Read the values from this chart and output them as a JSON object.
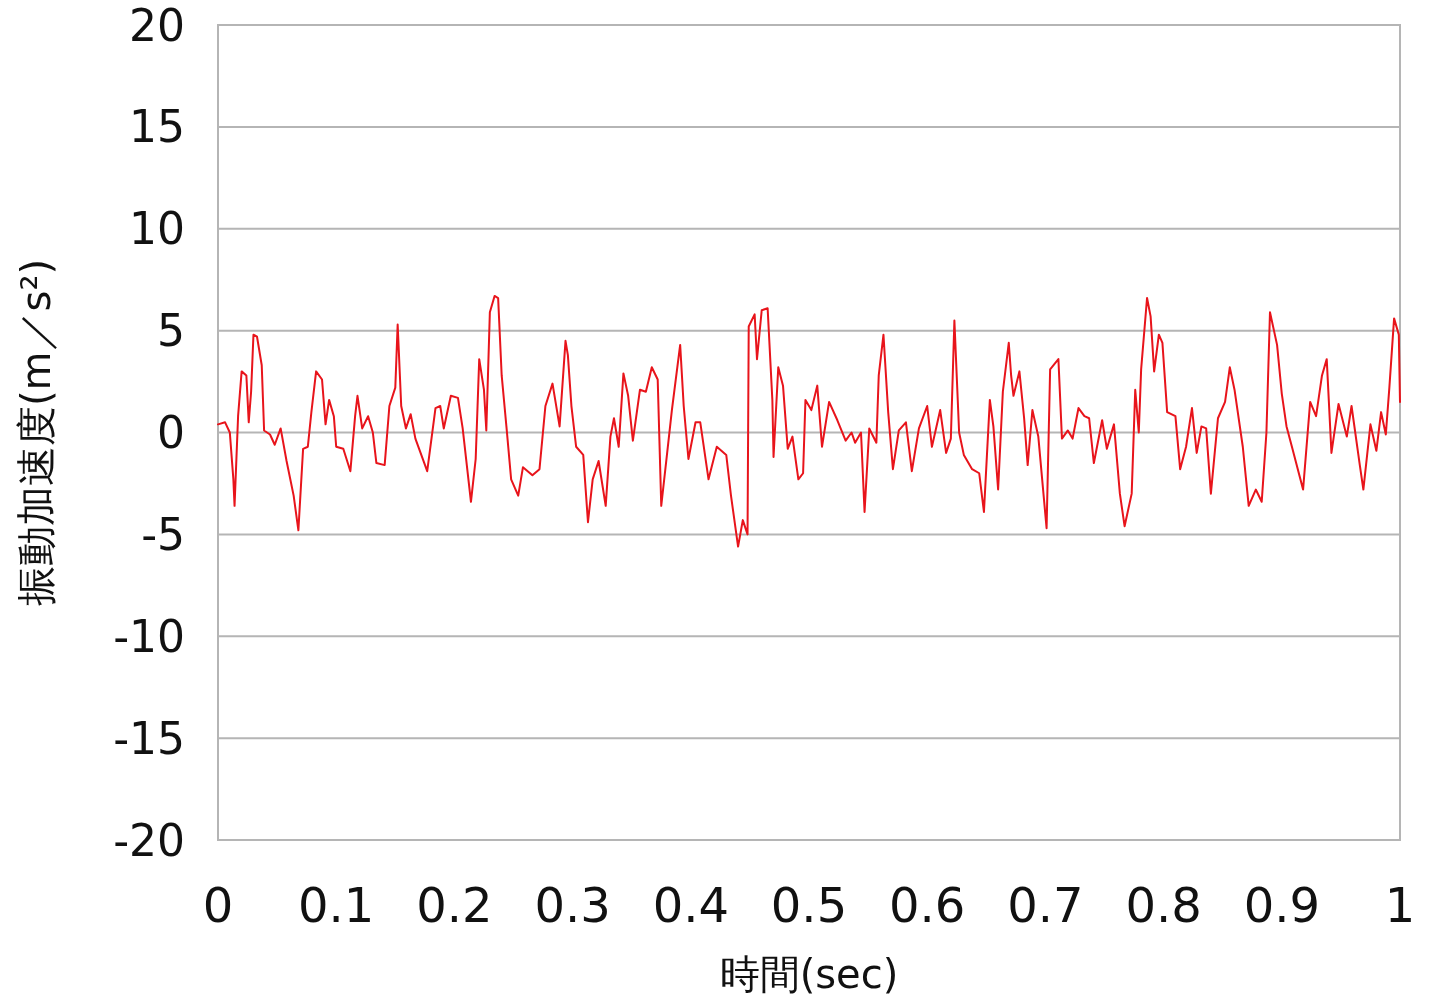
{
  "chart_data": {
    "type": "line",
    "xlabel": "時間(sec)",
    "ylabel": "振動加速度(m／s²)",
    "xlim": [
      0,
      1
    ],
    "xticks": [
      0,
      0.1,
      0.2,
      0.3,
      0.4,
      0.5,
      0.6,
      0.7,
      0.8,
      0.9,
      1
    ],
    "ylim": [
      -20,
      20
    ],
    "yticks": [
      -20,
      -15,
      -10,
      -5,
      0,
      5,
      10,
      15,
      20
    ],
    "grid": "y",
    "marker": "none",
    "line_style": "solid",
    "series": [
      {
        "color": "#e8141b",
        "x": [
          0,
          0.006,
          0.01,
          0.013,
          0.014,
          0.017,
          0.02,
          0.024,
          0.026,
          0.028,
          0.03,
          0.033,
          0.037,
          0.039,
          0.044,
          0.048,
          0.053,
          0.058,
          0.064,
          0.068,
          0.072,
          0.076,
          0.079,
          0.083,
          0.088,
          0.091,
          0.094,
          0.098,
          0.1,
          0.106,
          0.112,
          0.116,
          0.118,
          0.122,
          0.127,
          0.131,
          0.134,
          0.141,
          0.145,
          0.15,
          0.152,
          0.155,
          0.159,
          0.163,
          0.167,
          0.177,
          0.184,
          0.188,
          0.191,
          0.197,
          0.203,
          0.207,
          0.214,
          0.218,
          0.221,
          0.225,
          0.227,
          0.23,
          0.234,
          0.237,
          0.24,
          0.244,
          0.248,
          0.254,
          0.258,
          0.266,
          0.272,
          0.277,
          0.283,
          0.289,
          0.294,
          0.296,
          0.299,
          0.303,
          0.309,
          0.313,
          0.317,
          0.322,
          0.328,
          0.332,
          0.335,
          0.339,
          0.343,
          0.347,
          0.351,
          0.357,
          0.362,
          0.367,
          0.372,
          0.375,
          0.38,
          0.384,
          0.391,
          0.394,
          0.398,
          0.404,
          0.408,
          0.415,
          0.422,
          0.43,
          0.434,
          0.44,
          0.444,
          0.448,
          0.449,
          0.454,
          0.456,
          0.46,
          0.465,
          0.469,
          0.47,
          0.474,
          0.478,
          0.482,
          0.486,
          0.491,
          0.495,
          0.497,
          0.502,
          0.507,
          0.511,
          0.517,
          0.524,
          0.531,
          0.536,
          0.539,
          0.544,
          0.547,
          0.551,
          0.557,
          0.559,
          0.563,
          0.567,
          0.571,
          0.576,
          0.582,
          0.587,
          0.593,
          0.6,
          0.604,
          0.611,
          0.616,
          0.62,
          0.623,
          0.627,
          0.631,
          0.638,
          0.644,
          0.648,
          0.653,
          0.656,
          0.66,
          0.664,
          0.669,
          0.671,
          0.673,
          0.678,
          0.682,
          0.685,
          0.689,
          0.694,
          0.701,
          0.704,
          0.711,
          0.714,
          0.719,
          0.723,
          0.728,
          0.733,
          0.737,
          0.741,
          0.748,
          0.752,
          0.758,
          0.763,
          0.767,
          0.773,
          0.776,
          0.779,
          0.781,
          0.786,
          0.789,
          0.792,
          0.796,
          0.799,
          0.803,
          0.81,
          0.814,
          0.819,
          0.824,
          0.828,
          0.832,
          0.836,
          0.84,
          0.846,
          0.852,
          0.856,
          0.86,
          0.867,
          0.872,
          0.878,
          0.883,
          0.887,
          0.89,
          0.896,
          0.9,
          0.904,
          0.909,
          0.918,
          0.924,
          0.929,
          0.934,
          0.938,
          0.942,
          0.948,
          0.955,
          0.959,
          0.966,
          0.969,
          0.975,
          0.98,
          0.984,
          0.988,
          0.991,
          0.995,
          0.999,
          1
        ],
        "values": [
          0.4,
          0.5,
          0,
          -2.3,
          -3.6,
          0.8,
          3,
          2.8,
          0.5,
          2,
          4.8,
          4.7,
          3.3,
          0.1,
          -0.1,
          -0.6,
          0.2,
          -1.4,
          -3.1,
          -4.8,
          -0.8,
          -0.7,
          1,
          3,
          2.6,
          0.4,
          1.6,
          0.8,
          -0.7,
          -0.8,
          -1.9,
          0.8,
          1.8,
          0.2,
          0.8,
          0,
          -1.5,
          -1.6,
          1.3,
          2.2,
          5.3,
          1.3,
          0.2,
          0.9,
          -0.3,
          -1.9,
          1.2,
          1.3,
          0.2,
          1.8,
          1.7,
          0.2,
          -3.4,
          -1.3,
          3.6,
          2.1,
          0.1,
          5.9,
          6.7,
          6.6,
          2.8,
          0.3,
          -2.3,
          -3.1,
          -1.7,
          -2.1,
          -1.8,
          1.3,
          2.4,
          0.3,
          4.5,
          3.8,
          1.3,
          -0.7,
          -1.1,
          -4.4,
          -2.3,
          -1.4,
          -3.6,
          -0.2,
          0.7,
          -0.7,
          2.9,
          1.8,
          -0.4,
          2.1,
          2,
          3.2,
          2.6,
          -3.6,
          -1,
          1.1,
          4.3,
          1.3,
          -1.3,
          0.5,
          0.5,
          -2.3,
          -0.7,
          -1.1,
          -3.1,
          -5.6,
          -4.3,
          -5,
          5.2,
          5.8,
          3.6,
          6,
          6.1,
          1.6,
          -1.2,
          3.2,
          2.3,
          -0.8,
          -0.2,
          -2.3,
          -2,
          1.6,
          1.1,
          2.3,
          -0.7,
          1.5,
          0.6,
          -0.4,
          0,
          -0.5,
          0,
          -3.9,
          0.2,
          -0.5,
          2.8,
          4.8,
          1,
          -1.8,
          0.1,
          0.5,
          -1.9,
          0.2,
          1.3,
          -0.7,
          1.1,
          -1,
          -0.3,
          5.5,
          0,
          -1.1,
          -1.8,
          -2,
          -3.9,
          1.6,
          0.3,
          -2.8,
          2,
          4.4,
          2.8,
          1.8,
          3,
          0.7,
          -1.6,
          1.1,
          -0.2,
          -4.7,
          3.1,
          3.6,
          -0.3,
          0.1,
          -0.3,
          1.2,
          0.8,
          0.7,
          -1.5,
          0.6,
          -0.8,
          0.4,
          -3,
          -4.6,
          -3,
          2.1,
          0,
          3.1,
          6.6,
          5.7,
          3,
          4.8,
          4.4,
          1,
          0.8,
          -1.8,
          -0.7,
          1.2,
          -1,
          0.3,
          0.2,
          -3,
          0.7,
          1.5,
          3.2,
          2.1,
          -0.7,
          -3.6,
          -2.8,
          -3.4,
          0,
          5.9,
          4.3,
          1.9,
          0.3,
          -0.8,
          -2.8,
          1.5,
          0.8,
          2.8,
          3.6,
          -1,
          1.4,
          -0.2,
          1.3,
          -1.6,
          -2.8,
          0.4,
          -0.9,
          1,
          -0.1,
          2.2,
          5.6,
          4.8,
          1.5
        ]
      }
    ]
  }
}
